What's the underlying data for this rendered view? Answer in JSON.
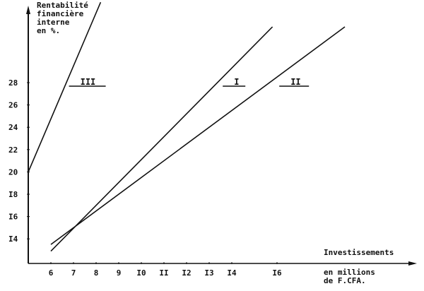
{
  "chart_data": {
    "type": "line",
    "ylabel_lines": [
      "Rentabilité",
      "financière",
      "interne",
      "en %."
    ],
    "xlabel": "Investissements",
    "xunit_lines": [
      "en millions",
      "de F.CFA."
    ],
    "x_ticks": [
      {
        "value": 6,
        "label": "6"
      },
      {
        "value": 7,
        "label": "7"
      },
      {
        "value": 8,
        "label": "8"
      },
      {
        "value": 9,
        "label": "9"
      },
      {
        "value": 10,
        "label": "I0"
      },
      {
        "value": 11,
        "label": "II"
      },
      {
        "value": 12,
        "label": "I2"
      },
      {
        "value": 13,
        "label": "I3"
      },
      {
        "value": 14,
        "label": "I4"
      },
      {
        "value": 16,
        "label": "I6"
      }
    ],
    "y_ticks": [
      {
        "value": 14,
        "label": "I4"
      },
      {
        "value": 16,
        "label": "I6"
      },
      {
        "value": 18,
        "label": "I8"
      },
      {
        "value": 20,
        "label": "20"
      },
      {
        "value": 22,
        "label": "22"
      },
      {
        "value": 24,
        "label": "24"
      },
      {
        "value": 26,
        "label": "26"
      },
      {
        "value": 28,
        "label": "28"
      }
    ],
    "xlim": [
      5,
      22
    ],
    "ylim": [
      11.8,
      35.5
    ],
    "grid": false,
    "series": [
      {
        "name": "III",
        "points": [
          [
            5,
            20
          ],
          [
            8.2,
            35.2
          ]
        ],
        "label_at": [
          7.3,
          28
        ]
      },
      {
        "name": "I",
        "points": [
          [
            6,
            12.9
          ],
          [
            15.8,
            33
          ]
        ],
        "label_at": [
          14.1,
          28
        ]
      },
      {
        "name": "II",
        "points": [
          [
            6,
            13.5
          ],
          [
            19,
            33
          ]
        ],
        "label_at": [
          16.6,
          28
        ]
      }
    ],
    "color": "#111111"
  }
}
